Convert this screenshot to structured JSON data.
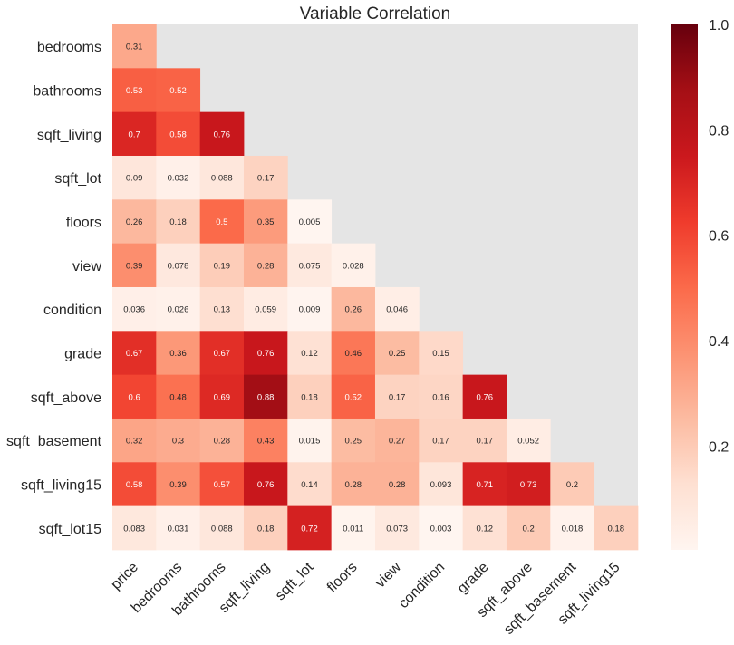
{
  "chart_data": {
    "type": "heatmap",
    "title": "Variable Correlation",
    "xlabel": "",
    "ylabel": "",
    "x_categories": [
      "price",
      "bedrooms",
      "bathrooms",
      "sqft_living",
      "sqft_lot",
      "floors",
      "view",
      "condition",
      "grade",
      "sqft_above",
      "sqft_basement",
      "sqft_living15"
    ],
    "y_categories": [
      "bedrooms",
      "bathrooms",
      "sqft_living",
      "sqft_lot",
      "floors",
      "view",
      "condition",
      "grade",
      "sqft_above",
      "sqft_basement",
      "sqft_living15",
      "sqft_lot15"
    ],
    "values": [
      [
        0.31
      ],
      [
        0.53,
        0.52
      ],
      [
        0.7,
        0.58,
        0.76
      ],
      [
        0.09,
        0.032,
        0.088,
        0.17
      ],
      [
        0.26,
        0.18,
        0.5,
        0.35,
        0.005
      ],
      [
        0.39,
        0.078,
        0.19,
        0.28,
        0.075,
        0.028
      ],
      [
        0.036,
        0.026,
        0.13,
        0.059,
        0.009,
        0.26,
        0.046
      ],
      [
        0.67,
        0.36,
        0.67,
        0.76,
        0.12,
        0.46,
        0.25,
        0.15
      ],
      [
        0.6,
        0.48,
        0.69,
        0.88,
        0.18,
        0.52,
        0.17,
        0.16,
        0.76
      ],
      [
        0.32,
        0.3,
        0.28,
        0.43,
        0.015,
        0.25,
        0.27,
        0.17,
        0.17,
        0.052
      ],
      [
        0.58,
        0.39,
        0.57,
        0.76,
        0.14,
        0.28,
        0.28,
        0.093,
        0.71,
        0.73,
        0.2
      ],
      [
        0.083,
        0.031,
        0.088,
        0.18,
        0.72,
        0.011,
        0.073,
        0.003,
        0.12,
        0.2,
        0.018,
        0.18
      ]
    ],
    "mask": "upper-triangle",
    "colormap": "Reds",
    "vmin": 0.003,
    "vmax": 1.0,
    "colorbar_ticks": [
      "1.0",
      "0.8",
      "0.6",
      "0.4",
      "0.2"
    ],
    "colorbar_tick_values": [
      1.0,
      0.8,
      0.6,
      0.4,
      0.2
    ],
    "masked_color": "#e5e5e5",
    "grid": false
  }
}
